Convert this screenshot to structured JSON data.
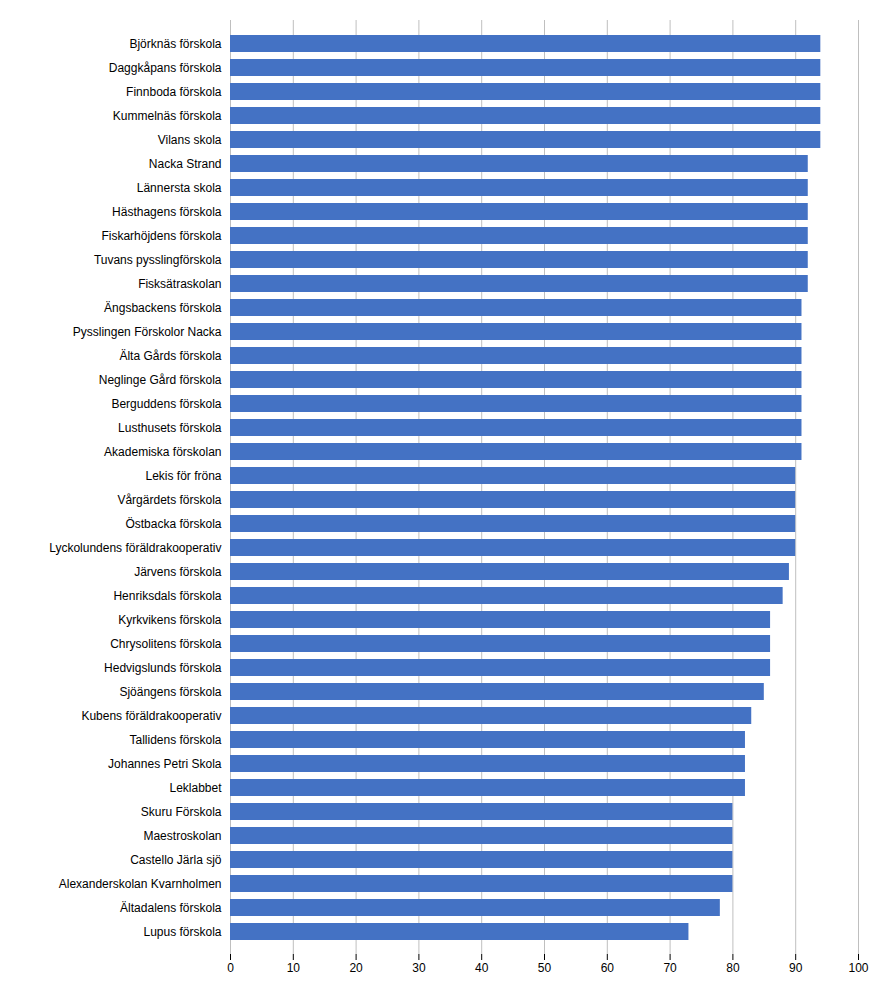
{
  "chart_data": {
    "type": "bar",
    "orientation": "horizontal",
    "categories": [
      "Björknäs förskola",
      "Daggkåpans förskola",
      "Finnboda förskola",
      "Kummelnäs förskola",
      "Vilans skola",
      "Nacka Strand",
      "Lännersta skola",
      "Hästhagens förskola",
      "Fiskarhöjdens förskola",
      "Tuvans pysslingförskola",
      "Fisksätraskolan",
      "Ängsbackens förskola",
      "Pysslingen Förskolor Nacka",
      "Älta Gårds förskola",
      "Neglinge Gård förskola",
      "Berguddens förskola",
      "Lusthusets förskola",
      "Akademiska förskolan",
      "Lekis för fröna",
      "Vårgärdets förskola",
      "Östbacka förskola",
      "Lyckolundens föräldrakooperativ",
      "Järvens förskola",
      "Henriksdals förskola",
      "Kyrkvikens förskola",
      "Chrysolitens förskola",
      "Hedvigslunds förskola",
      "Sjöängens förskola",
      "Kubens föräldrakooperativ",
      "Tallidens förskola",
      "Johannes Petri Skola",
      "Leklabbet",
      "Skuru Förskola",
      "Maestroskolan",
      "Castello Järla sjö",
      "Alexanderskolan Kvarnholmen",
      "Ältadalens förskola",
      "Lupus förskola"
    ],
    "values": [
      94,
      94,
      94,
      94,
      94,
      92,
      92,
      92,
      92,
      92,
      92,
      91,
      91,
      91,
      91,
      91,
      91,
      91,
      90,
      90,
      90,
      90,
      89,
      88,
      86,
      86,
      86,
      85,
      83,
      82,
      82,
      82,
      80,
      80,
      80,
      80,
      78,
      73
    ],
    "color": "#4472C4",
    "xlim": [
      0,
      100
    ],
    "xticks": [
      0,
      10,
      20,
      30,
      40,
      50,
      60,
      70,
      80,
      90,
      100
    ],
    "grid": true
  }
}
